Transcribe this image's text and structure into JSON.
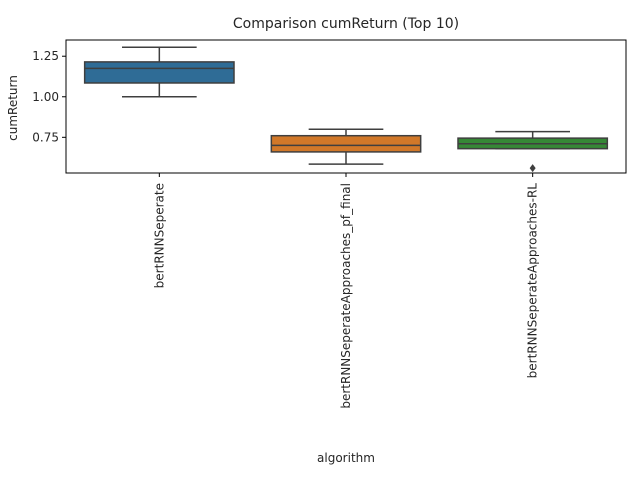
{
  "chart_data": {
    "type": "box",
    "title": "Comparison cumReturn (Top 10)",
    "xlabel": "algorithm",
    "ylabel": "cumReturn",
    "ylim": [
      0.53,
      1.35
    ],
    "yticks": [
      0.75,
      1.0,
      1.25
    ],
    "ytick_labels": [
      "0.75",
      "1.00",
      "1.25"
    ],
    "grid": false,
    "categories": [
      "bertRNNSeperate",
      "bertRNNSeperateApproaches_pf_final",
      "bertRNNSeperateApproaches-RL"
    ],
    "boxes": [
      {
        "category": "bertRNNSeperate",
        "whisker_low": 1.0,
        "q1": 1.085,
        "median": 1.175,
        "q3": 1.215,
        "whisker_high": 1.305,
        "outliers": [],
        "color": "#3274a1"
      },
      {
        "category": "bertRNNSeperateApproaches_pf_final",
        "whisker_low": 0.585,
        "q1": 0.66,
        "median": 0.7,
        "q3": 0.76,
        "whisker_high": 0.8,
        "outliers": [],
        "color": "#e1812c"
      },
      {
        "category": "bertRNNSeperateApproaches-RL",
        "whisker_low": 0.68,
        "q1": 0.68,
        "median": 0.71,
        "q3": 0.745,
        "whisker_high": 0.785,
        "outliers": [
          0.56
        ],
        "color": "#3a923a"
      }
    ]
  }
}
